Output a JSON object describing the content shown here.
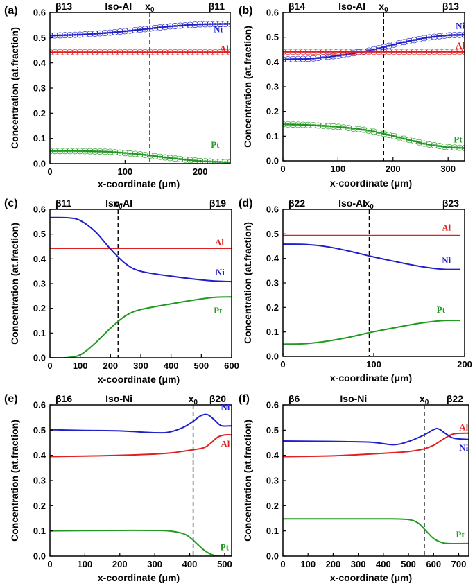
{
  "axis_titles": {
    "x": "x-coordinate (μm)",
    "y": "Concentration (at.fraction)"
  },
  "chart_data": [
    {
      "panel": "(a)",
      "type": "line",
      "header": {
        "left": "β13",
        "mid": "Iso-Al",
        "x0": "x",
        "x0_sub": "0",
        "right": "β11"
      },
      "xlim": [
        0,
        240
      ],
      "ylim": [
        0,
        0.6
      ],
      "xticks": [
        0,
        100,
        200
      ],
      "yticks": [
        0,
        0.1,
        0.2,
        0.3,
        0.4,
        0.5,
        0.6
      ],
      "x0": 133,
      "has_markers": true,
      "series": [
        {
          "name": "Ni",
          "color": "#1f1fcc",
          "x": [
            0,
            40,
            80,
            120,
            160,
            200,
            240
          ],
          "values": [
            0.508,
            0.512,
            0.52,
            0.532,
            0.545,
            0.553,
            0.555
          ]
        },
        {
          "name": "Al",
          "color": "#e02020",
          "x": [
            0,
            240
          ],
          "values": [
            0.442,
            0.442
          ]
        },
        {
          "name": "Pt",
          "color": "#1f9a1f",
          "x": [
            0,
            40,
            80,
            120,
            160,
            200,
            240
          ],
          "values": [
            0.05,
            0.05,
            0.047,
            0.037,
            0.022,
            0.01,
            0.005
          ]
        }
      ]
    },
    {
      "panel": "(b)",
      "type": "line",
      "header": {
        "left": "β14",
        "mid": "Iso-Al",
        "x0": "x",
        "x0_sub": "0",
        "right": "β13"
      },
      "xlim": [
        0,
        330
      ],
      "ylim": [
        0,
        0.6
      ],
      "xticks": [
        0,
        100,
        200,
        300
      ],
      "yticks": [
        0,
        0.1,
        0.2,
        0.3,
        0.4,
        0.5,
        0.6
      ],
      "x0": 183,
      "has_markers": true,
      "series": [
        {
          "name": "Ni",
          "color": "#1f1fcc",
          "x": [
            0,
            50,
            100,
            150,
            183,
            220,
            260,
            300,
            330
          ],
          "values": [
            0.41,
            0.413,
            0.425,
            0.443,
            0.46,
            0.48,
            0.498,
            0.508,
            0.51
          ]
        },
        {
          "name": "Al",
          "color": "#e02020",
          "x": [
            0,
            330
          ],
          "values": [
            0.441,
            0.441
          ]
        },
        {
          "name": "Pt",
          "color": "#1f9a1f",
          "x": [
            0,
            50,
            100,
            150,
            183,
            220,
            260,
            300,
            330
          ],
          "values": [
            0.148,
            0.145,
            0.138,
            0.125,
            0.11,
            0.09,
            0.068,
            0.055,
            0.052
          ]
        }
      ]
    },
    {
      "panel": "(c)",
      "type": "line",
      "header": {
        "left": "β11",
        "mid": "Iso-Al",
        "x0": "x",
        "x0_sub": "0",
        "right": "β19"
      },
      "xlim": [
        0,
        600
      ],
      "ylim": [
        0,
        0.6
      ],
      "xticks": [
        0,
        100,
        200,
        300,
        400,
        500,
        600
      ],
      "yticks": [
        0,
        0.1,
        0.2,
        0.3,
        0.4,
        0.5,
        0.6
      ],
      "x0": 225,
      "has_markers": false,
      "series": [
        {
          "name": "Al",
          "color": "#e02020",
          "x": [
            0,
            600
          ],
          "values": [
            0.443,
            0.443
          ]
        },
        {
          "name": "Ni",
          "color": "#1f1fcc",
          "x": [
            0,
            60,
            100,
            150,
            200,
            250,
            300,
            400,
            500,
            550,
            600
          ],
          "values": [
            0.567,
            0.566,
            0.555,
            0.51,
            0.44,
            0.38,
            0.35,
            0.33,
            0.315,
            0.31,
            0.308
          ]
        },
        {
          "name": "Pt",
          "color": "#1f9a1f",
          "x": [
            0,
            50,
            100,
            150,
            200,
            250,
            300,
            400,
            500,
            550,
            600
          ],
          "values": [
            0.0,
            0.0,
            0.012,
            0.06,
            0.12,
            0.17,
            0.195,
            0.218,
            0.238,
            0.245,
            0.246
          ]
        }
      ]
    },
    {
      "panel": "(d)",
      "type": "line",
      "header": {
        "left": "β22",
        "mid": "Iso-Al",
        "x0": "x",
        "x0_sub": "0",
        "right": "β23"
      },
      "xlim": [
        0,
        200
      ],
      "ylim": [
        0,
        0.6
      ],
      "xticks": [
        0,
        100,
        200
      ],
      "yticks": [
        0,
        0.1,
        0.2,
        0.3,
        0.4,
        0.5,
        0.6
      ],
      "x0": 95,
      "xmax_data": 195,
      "has_markers": false,
      "series": [
        {
          "name": "Al",
          "color": "#e02020",
          "x": [
            0,
            195
          ],
          "values": [
            0.493,
            0.493
          ]
        },
        {
          "name": "Ni",
          "color": "#1f1fcc",
          "x": [
            0,
            25,
            50,
            75,
            95,
            120,
            150,
            175,
            195
          ],
          "values": [
            0.458,
            0.457,
            0.447,
            0.428,
            0.41,
            0.39,
            0.368,
            0.356,
            0.355
          ]
        },
        {
          "name": "Pt",
          "color": "#1f9a1f",
          "x": [
            0,
            25,
            50,
            75,
            95,
            120,
            150,
            175,
            195
          ],
          "values": [
            0.05,
            0.052,
            0.063,
            0.08,
            0.097,
            0.115,
            0.135,
            0.146,
            0.147
          ]
        }
      ]
    },
    {
      "panel": "(e)",
      "type": "line",
      "header": {
        "left": "β16",
        "mid": "Iso-Ni",
        "x0": "x",
        "x0_sub": "0",
        "right": "β20"
      },
      "xlim": [
        0,
        520
      ],
      "ylim": [
        0,
        0.6
      ],
      "xticks": [
        0,
        100,
        200,
        300,
        400,
        500
      ],
      "yticks": [
        0,
        0.1,
        0.2,
        0.3,
        0.4,
        0.5,
        0.6
      ],
      "x0": 410,
      "has_markers": false,
      "series": [
        {
          "name": "Ni",
          "color": "#1f1fcc",
          "x": [
            0,
            100,
            200,
            300,
            340,
            380,
            410,
            430,
            450,
            470,
            490,
            520
          ],
          "values": [
            0.502,
            0.499,
            0.497,
            0.49,
            0.492,
            0.51,
            0.535,
            0.556,
            0.562,
            0.542,
            0.518,
            0.517
          ]
        },
        {
          "name": "Al",
          "color": "#e02020",
          "x": [
            0,
            100,
            200,
            300,
            350,
            400,
            440,
            460,
            480,
            500,
            520
          ],
          "values": [
            0.395,
            0.397,
            0.4,
            0.405,
            0.41,
            0.42,
            0.43,
            0.448,
            0.472,
            0.481,
            0.481
          ]
        },
        {
          "name": "Pt",
          "color": "#1f9a1f",
          "x": [
            0,
            100,
            200,
            300,
            340,
            380,
            400,
            420,
            440,
            460,
            480,
            520
          ],
          "values": [
            0.1,
            0.101,
            0.102,
            0.102,
            0.1,
            0.09,
            0.075,
            0.05,
            0.025,
            0.008,
            0.0,
            0.0
          ]
        }
      ]
    },
    {
      "panel": "(f)",
      "type": "line",
      "header": {
        "left": "β6",
        "mid": "Iso-Ni",
        "x0": "x",
        "x0_sub": "0",
        "right": "β22"
      },
      "xlim": [
        0,
        740
      ],
      "ylim": [
        0,
        0.6
      ],
      "xticks": [
        0,
        100,
        200,
        300,
        400,
        500,
        600,
        700
      ],
      "yticks": [
        0,
        0.1,
        0.2,
        0.3,
        0.4,
        0.5,
        0.6
      ],
      "x0": 563,
      "has_markers": false,
      "series": [
        {
          "name": "Al",
          "color": "#e02020",
          "x": [
            0,
            200,
            400,
            500,
            560,
            600,
            640,
            680,
            740
          ],
          "values": [
            0.395,
            0.398,
            0.408,
            0.415,
            0.425,
            0.44,
            0.465,
            0.485,
            0.488
          ]
        },
        {
          "name": "Ni",
          "color": "#1f1fcc",
          "x": [
            0,
            200,
            350,
            440,
            500,
            560,
            600,
            620,
            650,
            680,
            740
          ],
          "values": [
            0.457,
            0.455,
            0.452,
            0.442,
            0.455,
            0.48,
            0.502,
            0.505,
            0.485,
            0.468,
            0.463
          ]
        },
        {
          "name": "Pt",
          "color": "#1f9a1f",
          "x": [
            0,
            200,
            400,
            500,
            540,
            570,
            600,
            630,
            660,
            740
          ],
          "values": [
            0.148,
            0.148,
            0.148,
            0.145,
            0.13,
            0.1,
            0.07,
            0.055,
            0.05,
            0.05
          ]
        }
      ]
    }
  ]
}
